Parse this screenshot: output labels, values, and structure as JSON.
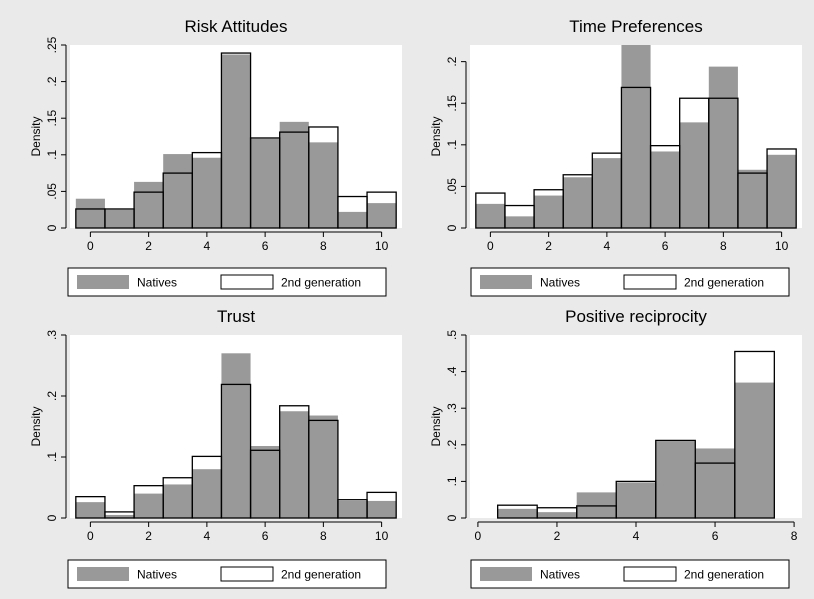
{
  "colors": {
    "background": "#eaeaea",
    "plot_region": "#ffffff",
    "natives_fill": "#999999",
    "second_gen_fill": "#ffffff",
    "second_gen_outline": "#000000"
  },
  "chart_data": [
    {
      "type": "bar",
      "title": "Risk Attitudes",
      "ylabel": "Density",
      "xlabel": "",
      "categories": [
        0,
        1,
        2,
        3,
        4,
        5,
        6,
        7,
        8,
        9,
        10
      ],
      "xlim": [
        -0.7,
        10.7
      ],
      "ylim": [
        0,
        0.25
      ],
      "xticks": [
        0,
        2,
        4,
        6,
        8,
        10
      ],
      "yticks": [
        0,
        0.05,
        0.1,
        0.15,
        0.2,
        0.25
      ],
      "ytick_labels": [
        "0",
        ".05",
        ".1",
        ".15",
        ".2",
        ".25"
      ],
      "series": [
        {
          "name": "Natives",
          "values": [
            0.04,
            0.025,
            0.063,
            0.101,
            0.096,
            0.237,
            0.122,
            0.145,
            0.117,
            0.022,
            0.034
          ]
        },
        {
          "name": "2nd generation",
          "values": [
            0.026,
            0.026,
            0.049,
            0.075,
            0.103,
            0.239,
            0.123,
            0.131,
            0.138,
            0.043,
            0.049
          ]
        }
      ],
      "legend": {
        "position": "bottom",
        "entries": [
          "Natives",
          "2nd generation"
        ]
      }
    },
    {
      "type": "bar",
      "title": "Time Preferences",
      "ylabel": "Density",
      "xlabel": "",
      "categories": [
        0,
        1,
        2,
        3,
        4,
        5,
        6,
        7,
        8,
        9,
        10
      ],
      "xlim": [
        -0.7,
        10.7
      ],
      "ylim": [
        0,
        0.22
      ],
      "xticks": [
        0,
        2,
        4,
        6,
        8,
        10
      ],
      "yticks": [
        0,
        0.05,
        0.1,
        0.15,
        0.2
      ],
      "ytick_labels": [
        "0",
        ".05",
        ".1",
        ".15",
        ".2"
      ],
      "series": [
        {
          "name": "Natives",
          "values": [
            0.029,
            0.014,
            0.039,
            0.061,
            0.084,
            0.22,
            0.092,
            0.127,
            0.194,
            0.07,
            0.088
          ]
        },
        {
          "name": "2nd generation",
          "values": [
            0.042,
            0.027,
            0.046,
            0.064,
            0.09,
            0.169,
            0.099,
            0.156,
            0.156,
            0.066,
            0.095
          ]
        }
      ],
      "legend": {
        "position": "bottom",
        "entries": [
          "Natives",
          "2nd generation"
        ]
      }
    },
    {
      "type": "bar",
      "title": "Trust",
      "ylabel": "Density",
      "xlabel": "",
      "categories": [
        0,
        1,
        2,
        3,
        4,
        5,
        6,
        7,
        8,
        9,
        10
      ],
      "xlim": [
        -0.7,
        10.7
      ],
      "ylim": [
        0,
        0.3
      ],
      "xticks": [
        0,
        2,
        4,
        6,
        8,
        10
      ],
      "yticks": [
        0,
        0.1,
        0.2,
        0.3
      ],
      "ytick_labels": [
        "0",
        ".1",
        ".2",
        ".3"
      ],
      "series": [
        {
          "name": "Natives",
          "values": [
            0.026,
            0.005,
            0.04,
            0.055,
            0.08,
            0.27,
            0.118,
            0.175,
            0.168,
            0.028,
            0.028
          ]
        },
        {
          "name": "2nd generation",
          "values": [
            0.035,
            0.01,
            0.053,
            0.066,
            0.101,
            0.219,
            0.111,
            0.184,
            0.16,
            0.03,
            0.042
          ]
        }
      ],
      "legend": {
        "position": "bottom",
        "entries": [
          "Natives",
          "2nd generation"
        ]
      }
    },
    {
      "type": "bar",
      "title": "Positive reciprocity",
      "ylabel": "Density",
      "xlabel": "",
      "categories": [
        1,
        2,
        3,
        4,
        5,
        6,
        7
      ],
      "xlim": [
        -0.2,
        8.2
      ],
      "ylim": [
        0,
        0.5
      ],
      "xticks": [
        0,
        2,
        4,
        6,
        8
      ],
      "yticks": [
        0,
        0.1,
        0.2,
        0.3,
        0.4,
        0.5
      ],
      "ytick_labels": [
        "0",
        ".1",
        ".2",
        ".3",
        ".4",
        ".5"
      ],
      "series": [
        {
          "name": "Natives",
          "values": [
            0.025,
            0.016,
            0.07,
            0.097,
            0.21,
            0.19,
            0.37
          ]
        },
        {
          "name": "2nd generation",
          "values": [
            0.035,
            0.028,
            0.033,
            0.1,
            0.212,
            0.15,
            0.455
          ]
        }
      ],
      "legend": {
        "position": "bottom",
        "entries": [
          "Natives",
          "2nd generation"
        ]
      }
    }
  ]
}
